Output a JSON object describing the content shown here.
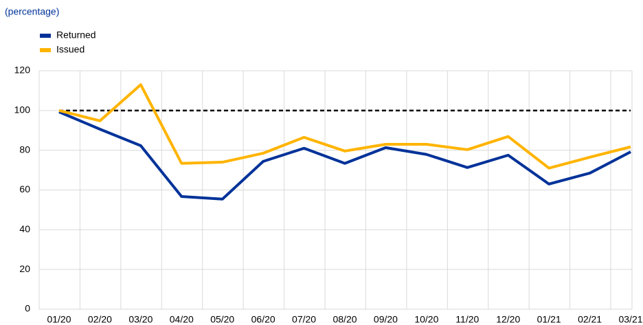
{
  "chart_data": {
    "type": "line",
    "subtitle": "(percentage)",
    "categories": [
      "01/20",
      "02/20",
      "03/20",
      "04/20",
      "05/20",
      "06/20",
      "07/20",
      "08/20",
      "09/20",
      "10/20",
      "11/20",
      "12/20",
      "01/21",
      "02/21",
      "03/21"
    ],
    "series": [
      {
        "name": "Returned",
        "color": "#003299",
        "values": [
          99.3,
          90.6,
          82.3,
          56.7,
          55.4,
          74.4,
          81,
          73.4,
          81.3,
          77.9,
          71.3,
          77.5,
          63,
          68.5,
          79.2
        ]
      },
      {
        "name": "Issued",
        "color": "#ffb400",
        "values": [
          100,
          94.8,
          113,
          73.4,
          74,
          78.5,
          86.5,
          79.6,
          83,
          83,
          80.3,
          86.9,
          71,
          76.5,
          81.7
        ]
      }
    ],
    "reference_line": 100,
    "ylim": [
      0,
      120
    ],
    "yticks": [
      0,
      20,
      40,
      60,
      80,
      100,
      120
    ],
    "grid": true,
    "legend": "top-left"
  }
}
